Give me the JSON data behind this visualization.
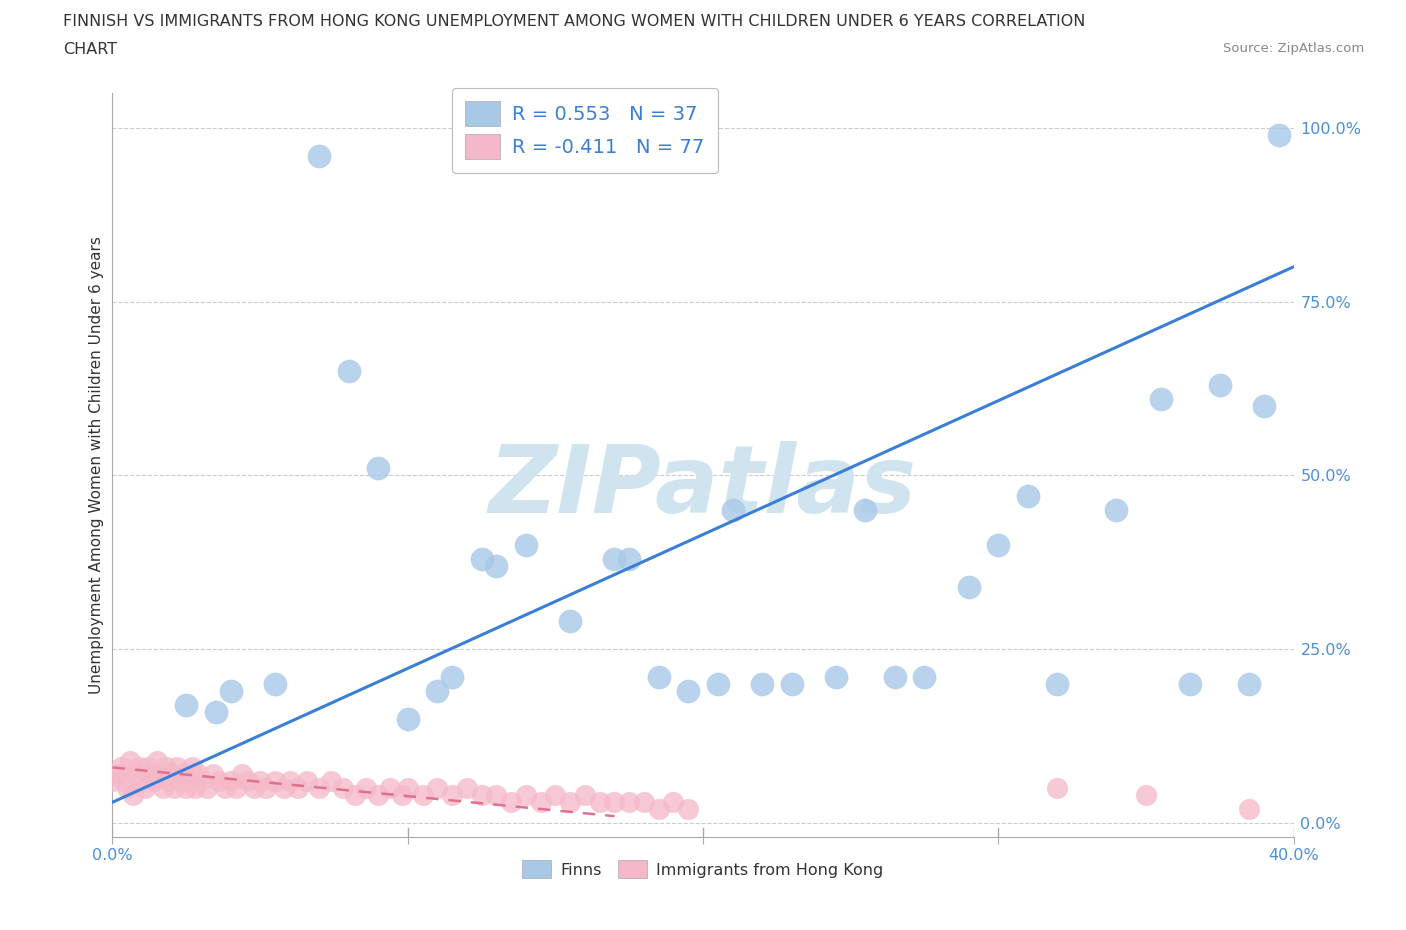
{
  "title_line1": "FINNISH VS IMMIGRANTS FROM HONG KONG UNEMPLOYMENT AMONG WOMEN WITH CHILDREN UNDER 6 YEARS CORRELATION",
  "title_line2": "CHART",
  "source": "Source: ZipAtlas.com",
  "ylabel": "Unemployment Among Women with Children Under 6 years",
  "r_finns": 0.553,
  "n_finns": 37,
  "r_hk": -0.411,
  "n_hk": 77,
  "finns_color": "#a8c8e8",
  "hk_color": "#f5b8c8",
  "finns_line_color": "#3a7fd5",
  "hk_line_color": "#e07090",
  "watermark_color": "#d0e4f0",
  "xlim": [
    0.0,
    0.4
  ],
  "ylim": [
    -0.02,
    1.05
  ],
  "yticks": [
    0.0,
    0.25,
    0.5,
    0.75,
    1.0
  ],
  "ytick_labels": [
    "0.0%",
    "25.0%",
    "50.0%",
    "75.0%",
    "100.0%"
  ],
  "finns_x": [
    0.025,
    0.035,
    0.04,
    0.055,
    0.07,
    0.08,
    0.09,
    0.1,
    0.11,
    0.115,
    0.125,
    0.13,
    0.14,
    0.155,
    0.17,
    0.175,
    0.185,
    0.195,
    0.205,
    0.21,
    0.22,
    0.23,
    0.245,
    0.255,
    0.265,
    0.275,
    0.29,
    0.3,
    0.31,
    0.32,
    0.34,
    0.355,
    0.365,
    0.375,
    0.385,
    0.39,
    0.395
  ],
  "finns_y": [
    0.17,
    0.16,
    0.19,
    0.2,
    0.96,
    0.65,
    0.51,
    0.15,
    0.19,
    0.21,
    0.38,
    0.37,
    0.4,
    0.29,
    0.38,
    0.38,
    0.21,
    0.19,
    0.2,
    0.45,
    0.2,
    0.2,
    0.21,
    0.45,
    0.21,
    0.21,
    0.34,
    0.4,
    0.47,
    0.2,
    0.45,
    0.61,
    0.2,
    0.63,
    0.2,
    0.6,
    0.99
  ],
  "hk_x": [
    0.0,
    0.002,
    0.003,
    0.004,
    0.005,
    0.006,
    0.007,
    0.008,
    0.009,
    0.01,
    0.011,
    0.012,
    0.013,
    0.014,
    0.015,
    0.016,
    0.017,
    0.018,
    0.019,
    0.02,
    0.021,
    0.022,
    0.023,
    0.024,
    0.025,
    0.026,
    0.027,
    0.028,
    0.029,
    0.03,
    0.032,
    0.034,
    0.036,
    0.038,
    0.04,
    0.042,
    0.044,
    0.046,
    0.048,
    0.05,
    0.052,
    0.055,
    0.058,
    0.06,
    0.063,
    0.066,
    0.07,
    0.074,
    0.078,
    0.082,
    0.086,
    0.09,
    0.094,
    0.098,
    0.1,
    0.105,
    0.11,
    0.115,
    0.12,
    0.125,
    0.13,
    0.135,
    0.14,
    0.145,
    0.15,
    0.155,
    0.16,
    0.165,
    0.17,
    0.175,
    0.18,
    0.185,
    0.19,
    0.195,
    0.32,
    0.35,
    0.385
  ],
  "hk_y": [
    0.06,
    0.07,
    0.08,
    0.06,
    0.05,
    0.09,
    0.04,
    0.07,
    0.08,
    0.06,
    0.05,
    0.08,
    0.07,
    0.06,
    0.09,
    0.07,
    0.05,
    0.08,
    0.06,
    0.07,
    0.05,
    0.08,
    0.06,
    0.07,
    0.05,
    0.06,
    0.08,
    0.05,
    0.07,
    0.06,
    0.05,
    0.07,
    0.06,
    0.05,
    0.06,
    0.05,
    0.07,
    0.06,
    0.05,
    0.06,
    0.05,
    0.06,
    0.05,
    0.06,
    0.05,
    0.06,
    0.05,
    0.06,
    0.05,
    0.04,
    0.05,
    0.04,
    0.05,
    0.04,
    0.05,
    0.04,
    0.05,
    0.04,
    0.05,
    0.04,
    0.04,
    0.03,
    0.04,
    0.03,
    0.04,
    0.03,
    0.04,
    0.03,
    0.03,
    0.03,
    0.03,
    0.02,
    0.03,
    0.02,
    0.05,
    0.04,
    0.02
  ],
  "finns_line_x": [
    0.0,
    0.4
  ],
  "finns_line_y": [
    0.03,
    0.8
  ],
  "hk_line_x": [
    0.0,
    0.17
  ],
  "hk_line_y": [
    0.08,
    0.01
  ],
  "xtick_positions": [
    0.0,
    0.1,
    0.2,
    0.3,
    0.4
  ],
  "xtick_minor_positions": [
    0.05,
    0.15,
    0.25,
    0.35
  ]
}
